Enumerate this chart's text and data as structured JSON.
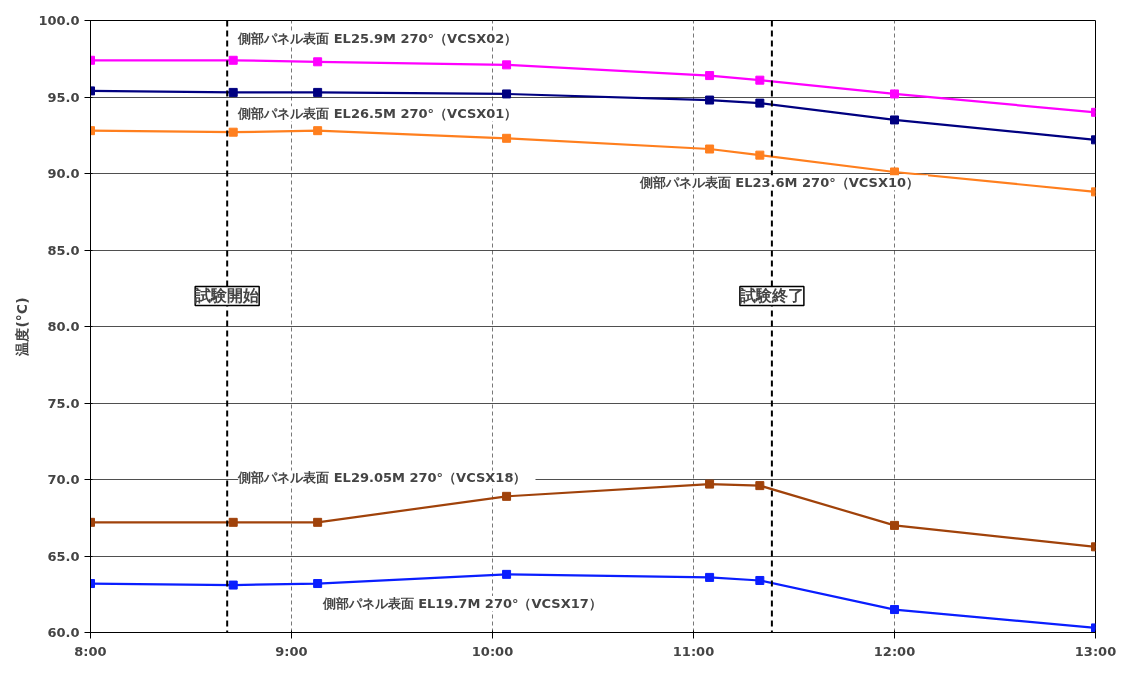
{
  "chart_data": {
    "type": "line",
    "ylabel": "温度(°C)",
    "x": [
      8.0,
      8.71,
      9.13,
      10.07,
      11.08,
      11.33,
      12.0,
      13.0
    ],
    "series": [
      {
        "name": "側部パネル表面  EL25.9M  270°（VCSX02）",
        "color": "#ff00ff",
        "values": [
          97.4,
          97.4,
          97.3,
          97.1,
          96.4,
          96.1,
          95.2,
          94.0
        ]
      },
      {
        "name": "側部パネル表面  EL26.5M  270°（VCSX01）",
        "color": "#000080",
        "values": [
          95.4,
          95.3,
          95.3,
          95.2,
          94.8,
          94.6,
          93.5,
          92.2
        ]
      },
      {
        "name": "側部パネル表面  EL23.6M  270°（VCSX10）",
        "color": "#ff7f1e",
        "values": [
          92.8,
          92.7,
          92.8,
          92.3,
          91.6,
          91.2,
          90.1,
          88.8
        ]
      },
      {
        "name": "側部パネル表面  EL29.05M  270°（VCSX18）",
        "color": "#a0420a",
        "values": [
          67.2,
          67.2,
          67.2,
          68.9,
          69.7,
          69.6,
          67.0,
          65.6
        ]
      },
      {
        "name": "側部パネル表面  EL19.7M  270°（VCSX17）",
        "color": "#0a1eff",
        "values": [
          63.2,
          63.1,
          63.2,
          63.8,
          63.6,
          63.4,
          61.5,
          60.3
        ]
      }
    ],
    "xlim": [
      8,
      13
    ],
    "ylim": [
      60,
      100
    ],
    "xticks": [
      {
        "value": 8,
        "label": "8:00"
      },
      {
        "value": 9,
        "label": "9:00"
      },
      {
        "value": 10,
        "label": "10:00"
      },
      {
        "value": 11,
        "label": "11:00"
      },
      {
        "value": 12,
        "label": "12:00"
      },
      {
        "value": 13,
        "label": "13:00"
      }
    ],
    "yticks": [
      {
        "value": 60,
        "label": "60.0"
      },
      {
        "value": 65,
        "label": "65.0"
      },
      {
        "value": 70,
        "label": "70.0"
      },
      {
        "value": 75,
        "label": "75.0"
      },
      {
        "value": 80,
        "label": "80.0"
      },
      {
        "value": 85,
        "label": "85.0"
      },
      {
        "value": 90,
        "label": "90.0"
      },
      {
        "value": 95,
        "label": "95.0"
      },
      {
        "value": 100,
        "label": "100.0"
      }
    ],
    "ref_lines": [
      {
        "axis": "x",
        "value": 8.68,
        "label": "試験開始",
        "color": "#000000",
        "line_style": "dashed"
      },
      {
        "axis": "x",
        "value": 11.39,
        "label": "試験終了",
        "color": "#000000",
        "line_style": "dashed"
      }
    ],
    "grid": true,
    "marker": "square",
    "line_style": "solid"
  }
}
